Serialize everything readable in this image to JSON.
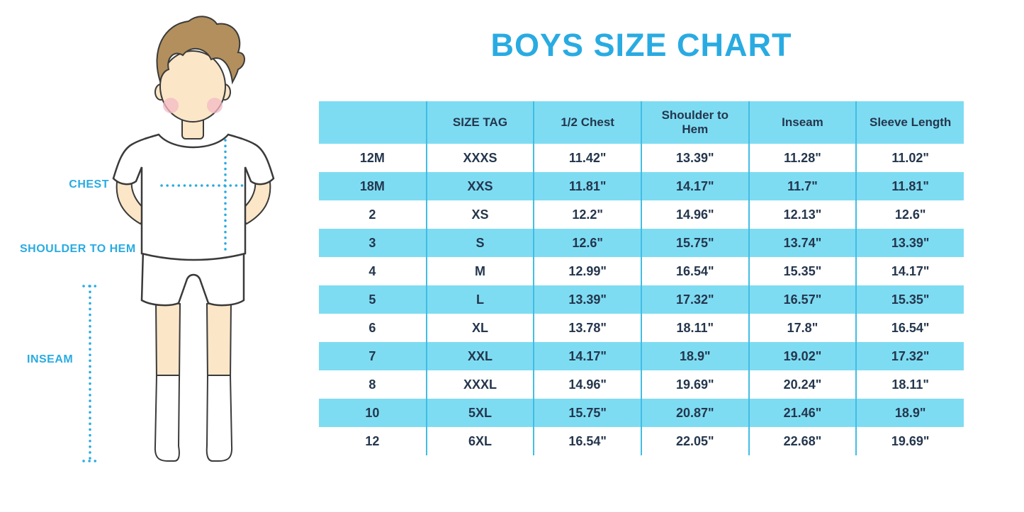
{
  "title": "BOYS SIZE CHART",
  "colors": {
    "accent_cyan": "#29ABE2",
    "row_blue": "#7EDCF2",
    "separator_blue": "#41BDE5",
    "text_dark": "#24364D",
    "skin": "#FBE6C8",
    "hair_brown": "#B28F5D",
    "cheek_pink": "#F4B9C6"
  },
  "diagram": {
    "labels": {
      "chest": "CHEST",
      "shoulder_to_hem": "SHOULDER TO HEM",
      "inseam": "INSEAM"
    }
  },
  "chart_data": {
    "type": "table",
    "title": "BOYS SIZE CHART",
    "columns": [
      "",
      "SIZE TAG",
      "1/2 Chest",
      "Shoulder to Hem",
      "Inseam",
      "Sleeve Length"
    ],
    "rows": [
      [
        "12M",
        "XXXS",
        "11.42\"",
        "13.39\"",
        "11.28\"",
        "11.02\""
      ],
      [
        "18M",
        "XXS",
        "11.81\"",
        "14.17\"",
        "11.7\"",
        "11.81\""
      ],
      [
        "2",
        "XS",
        "12.2\"",
        "14.96\"",
        "12.13\"",
        "12.6\""
      ],
      [
        "3",
        "S",
        "12.6\"",
        "15.75\"",
        "13.74\"",
        "13.39\""
      ],
      [
        "4",
        "M",
        "12.99\"",
        "16.54\"",
        "15.35\"",
        "14.17\""
      ],
      [
        "5",
        "L",
        "13.39\"",
        "17.32\"",
        "16.57\"",
        "15.35\""
      ],
      [
        "6",
        "XL",
        "13.78\"",
        "18.11\"",
        "17.8\"",
        "16.54\""
      ],
      [
        "7",
        "XXL",
        "14.17\"",
        "18.9\"",
        "19.02\"",
        "17.32\""
      ],
      [
        "8",
        "XXXL",
        "14.96\"",
        "19.69\"",
        "20.24\"",
        "18.11\""
      ],
      [
        "10",
        "5XL",
        "15.75\"",
        "20.87\"",
        "21.46\"",
        "18.9\""
      ],
      [
        "12",
        "6XL",
        "16.54\"",
        "22.05\"",
        "22.68\"",
        "19.69\""
      ]
    ]
  }
}
